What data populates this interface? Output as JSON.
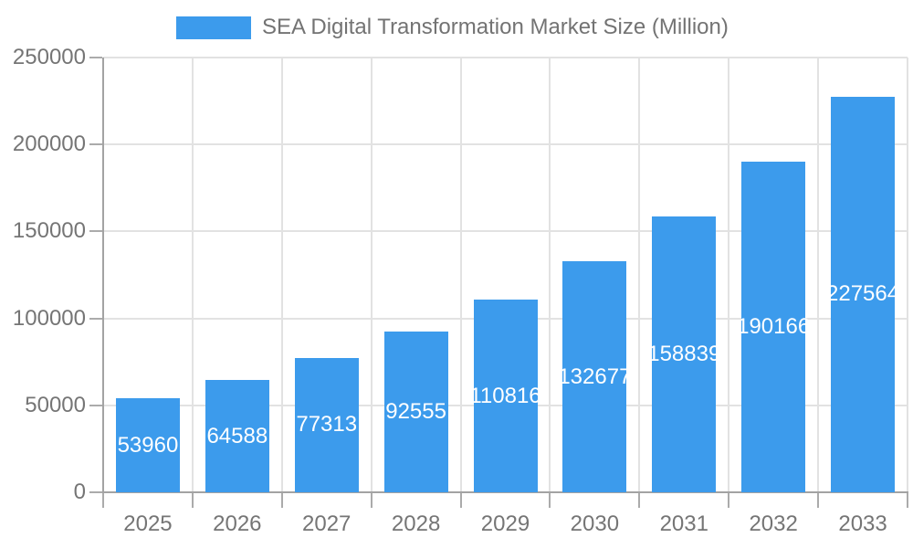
{
  "legend": {
    "label": "SEA Digital Transformation Market Size (Million)"
  },
  "colors": {
    "accent": "#3C9BEC",
    "grid": "#E2E2E2",
    "axis": "#A3A3A3",
    "tick": "#ABABAB",
    "axis_text": "#757575",
    "legend_text": "#737373",
    "bar_label": "#FFFFFF",
    "bg": "#FFFFFF"
  },
  "chart_data": {
    "type": "bar",
    "title": "SEA Digital Transformation Market Size (Million)",
    "categories": [
      "2025",
      "2026",
      "2027",
      "2028",
      "2029",
      "2030",
      "2031",
      "2032",
      "2033"
    ],
    "values": [
      53960,
      64588,
      77313,
      92555,
      110816,
      132677,
      158839,
      190166,
      227564
    ],
    "series_name": "SEA Digital Transformation Market Size (Million)",
    "xlabel": "",
    "ylabel": "",
    "yticks": [
      0,
      50000,
      100000,
      150000,
      200000,
      250000
    ],
    "ylim": [
      0,
      250000
    ],
    "grid": true,
    "legend_position": "top-center",
    "bar_value_labels": "inside-center"
  }
}
